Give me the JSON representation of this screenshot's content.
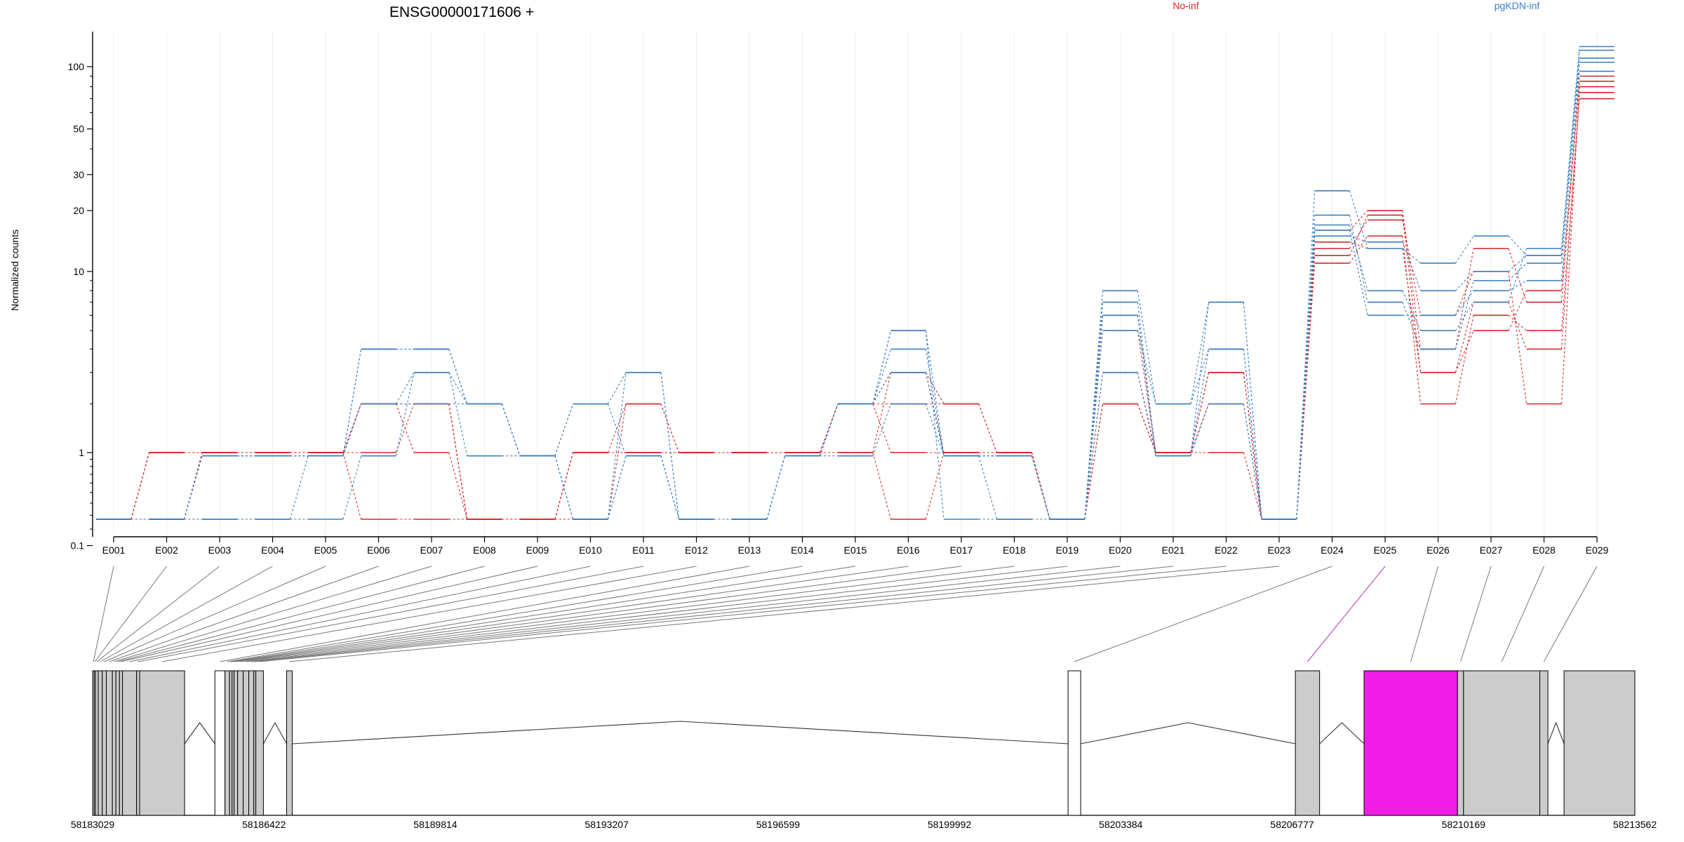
{
  "chart_data": {
    "type": "line",
    "title": "ENSG00000171606 +",
    "ylabel": "Normalized counts",
    "xlabel": "",
    "y_scale": "log",
    "ylim": [
      0.08,
      140
    ],
    "y_ticks": [
      0.1,
      1,
      10,
      20,
      30,
      50,
      100
    ],
    "y_tick_labels": [
      "0.1",
      "1",
      "10",
      "20",
      "30",
      "50",
      "100"
    ],
    "grid": true,
    "legend_position": "top",
    "legend": [
      {
        "name": "No-inf",
        "color": "#d62728"
      },
      {
        "name": "pgKDN-inf",
        "color": "#3a7fc1"
      }
    ],
    "categories": [
      "E001",
      "E002",
      "E003",
      "E004",
      "E005",
      "E006",
      "E007",
      "E008",
      "E009",
      "E010",
      "E011",
      "E012",
      "E013",
      "E014",
      "E015",
      "E016",
      "E017",
      "E018",
      "E019",
      "E020",
      "E021",
      "E022",
      "E023",
      "E024",
      "E025",
      "E026",
      "E027",
      "E028",
      "E029"
    ],
    "series": [
      {
        "group": "No-inf",
        "color": "#d62728",
        "values": [
          0.08,
          1,
          1,
          1,
          1,
          2,
          2,
          0.08,
          0.08,
          1,
          2,
          1,
          1,
          1,
          2,
          2,
          2,
          1,
          0.08,
          6,
          1,
          3,
          0.08,
          16,
          20,
          4,
          13,
          7,
          90
        ]
      },
      {
        "group": "No-inf",
        "color": "#d62728",
        "values": [
          0.08,
          1,
          1,
          1,
          1,
          1,
          2,
          0.08,
          0.08,
          1,
          1,
          1,
          1,
          1,
          1,
          3,
          1,
          1,
          0.08,
          3,
          1,
          1,
          0.08,
          13,
          18,
          6,
          10,
          2,
          80
        ]
      },
      {
        "group": "No-inf",
        "color": "#d62728",
        "values": [
          0.08,
          1,
          1,
          1,
          1,
          2,
          1,
          0.08,
          0.08,
          1,
          1,
          1,
          1,
          1,
          2,
          1,
          1,
          1,
          0.08,
          2,
          1,
          2,
          0.08,
          11,
          15,
          2,
          6,
          5,
          70
        ]
      },
      {
        "group": "No-inf",
        "color": "#d62728",
        "values": [
          0.08,
          0.08,
          1,
          1,
          1,
          0.08,
          0.08,
          0.08,
          0.08,
          1,
          1,
          1,
          1,
          1,
          1,
          0.08,
          1,
          1,
          0.08,
          2,
          1,
          3,
          0.08,
          14,
          13,
          3,
          7,
          4,
          75
        ]
      },
      {
        "group": "No-inf",
        "color": "#d62728",
        "values": [
          0.08,
          1,
          1,
          1,
          1,
          2,
          2,
          0.08,
          0.08,
          0.08,
          2,
          1,
          1,
          1,
          2,
          3,
          2,
          1,
          0.08,
          5,
          1,
          3,
          0.08,
          12,
          19,
          3,
          5,
          8,
          85
        ]
      },
      {
        "group": "pgKDN-inf",
        "color": "#3a7fc1",
        "values": [
          0.08,
          0.08,
          0.95,
          0.95,
          0.95,
          4,
          4,
          2,
          0.95,
          2,
          3,
          0.08,
          0.08,
          0.95,
          2,
          5,
          0.95,
          0.95,
          0.08,
          8,
          2,
          7,
          0.08,
          25,
          13,
          11,
          15,
          12,
          120
        ]
      },
      {
        "group": "pgKDN-inf",
        "color": "#3a7fc1",
        "values": [
          0.08,
          0.08,
          0.08,
          0.08,
          0.95,
          2,
          3,
          2,
          0.95,
          0.08,
          0.95,
          0.08,
          0.08,
          0.95,
          2,
          4,
          0.95,
          0.95,
          0.08,
          6,
          0.95,
          4,
          0.08,
          19,
          7,
          4,
          9,
          11,
          110
        ]
      },
      {
        "group": "pgKDN-inf",
        "color": "#3a7fc1",
        "values": [
          0.08,
          0.08,
          0.08,
          0.08,
          0.08,
          0.95,
          3,
          0.95,
          0.95,
          0.08,
          0.95,
          0.08,
          0.08,
          0.95,
          0.95,
          2,
          0.95,
          0.08,
          0.08,
          3,
          0.95,
          2,
          0.08,
          16,
          6,
          6,
          8,
          9,
          95
        ]
      },
      {
        "group": "pgKDN-inf",
        "color": "#3a7fc1",
        "values": [
          0.08,
          0.08,
          0.95,
          0.95,
          0.95,
          2,
          2,
          2,
          0.95,
          2,
          0.95,
          0.08,
          0.08,
          0.95,
          2,
          3,
          0.95,
          0.95,
          0.08,
          7,
          0.95,
          7,
          0.08,
          17,
          8,
          5,
          7,
          13,
          125
        ]
      },
      {
        "group": "pgKDN-inf",
        "color": "#3a7fc1",
        "values": [
          0.08,
          0.08,
          0.95,
          0.95,
          0.95,
          4,
          4,
          2,
          0.95,
          0.08,
          3,
          0.08,
          0.08,
          0.95,
          2,
          5,
          0.08,
          0.08,
          0.08,
          5,
          2,
          4,
          0.08,
          15,
          14,
          8,
          10,
          12,
          105
        ]
      }
    ],
    "gene_model": {
      "genomic_ticks": [
        "58183029",
        "58186422",
        "58189814",
        "58193207",
        "58196599",
        "58199992",
        "58203384",
        "58206777",
        "58210169",
        "58213562"
      ],
      "start": 58183029,
      "end": 58213562,
      "highlight_color": "#f01de6",
      "exon_fill": "#cccccc",
      "exons": [
        {
          "id": "E001",
          "start": 58183029,
          "end": 58183060,
          "expressed": true
        },
        {
          "id": "E002",
          "start": 58183060,
          "end": 58183085,
          "expressed": true
        },
        {
          "id": "E003",
          "start": 58183085,
          "end": 58183140,
          "expressed": true
        },
        {
          "id": "E004",
          "start": 58183140,
          "end": 58183220,
          "expressed": true
        },
        {
          "id": "E005",
          "start": 58183220,
          "end": 58183300,
          "expressed": true
        },
        {
          "id": "E006",
          "start": 58183300,
          "end": 58183420,
          "expressed": true
        },
        {
          "id": "E007",
          "start": 58183420,
          "end": 58183490,
          "expressed": true
        },
        {
          "id": "E008",
          "start": 58183490,
          "end": 58183560,
          "expressed": true
        },
        {
          "id": "E009",
          "start": 58183560,
          "end": 58183620,
          "expressed": true
        },
        {
          "id": "E010",
          "start": 58183620,
          "end": 58183900,
          "expressed": true
        },
        {
          "id": "E011",
          "start": 58183900,
          "end": 58183960,
          "expressed": true
        },
        {
          "id": "E012",
          "start": 58183960,
          "end": 58184850,
          "expressed": true
        },
        {
          "id": "E013",
          "start": 58185450,
          "end": 58185650,
          "expressed": false
        },
        {
          "id": "E014",
          "start": 58185650,
          "end": 58185740,
          "expressed": true
        },
        {
          "id": "E015",
          "start": 58185740,
          "end": 58185790,
          "expressed": true
        },
        {
          "id": "E016",
          "start": 58185790,
          "end": 58185830,
          "expressed": true
        },
        {
          "id": "E017",
          "start": 58185830,
          "end": 58185900,
          "expressed": true
        },
        {
          "id": "E018",
          "start": 58185900,
          "end": 58186010,
          "expressed": true
        },
        {
          "id": "E019",
          "start": 58186010,
          "end": 58186120,
          "expressed": true
        },
        {
          "id": "E020",
          "start": 58186120,
          "end": 58186220,
          "expressed": true
        },
        {
          "id": "E021",
          "start": 58186220,
          "end": 58186260,
          "expressed": true
        },
        {
          "id": "E022",
          "start": 58186260,
          "end": 58186410,
          "expressed": true
        },
        {
          "id": "E023",
          "start": 58186870,
          "end": 58186980,
          "expressed": true
        },
        {
          "id": "E024",
          "start": 58202340,
          "end": 58202590,
          "expressed": false
        },
        {
          "id": "E025",
          "start": 58206840,
          "end": 58207320,
          "expressed": true
        },
        {
          "id": "E026",
          "start": 58208200,
          "end": 58210050,
          "expressed": true,
          "highlight": true
        },
        {
          "id": "E027",
          "start": 58210050,
          "end": 58210170,
          "expressed": true
        },
        {
          "id": "E028",
          "start": 58210170,
          "end": 58211680,
          "expressed": true
        },
        {
          "id": "E029",
          "start": 58211680,
          "end": 58211840,
          "expressed": true
        },
        {
          "id": "E030",
          "start": 58212160,
          "end": 58213562,
          "expressed": true
        }
      ]
    }
  }
}
